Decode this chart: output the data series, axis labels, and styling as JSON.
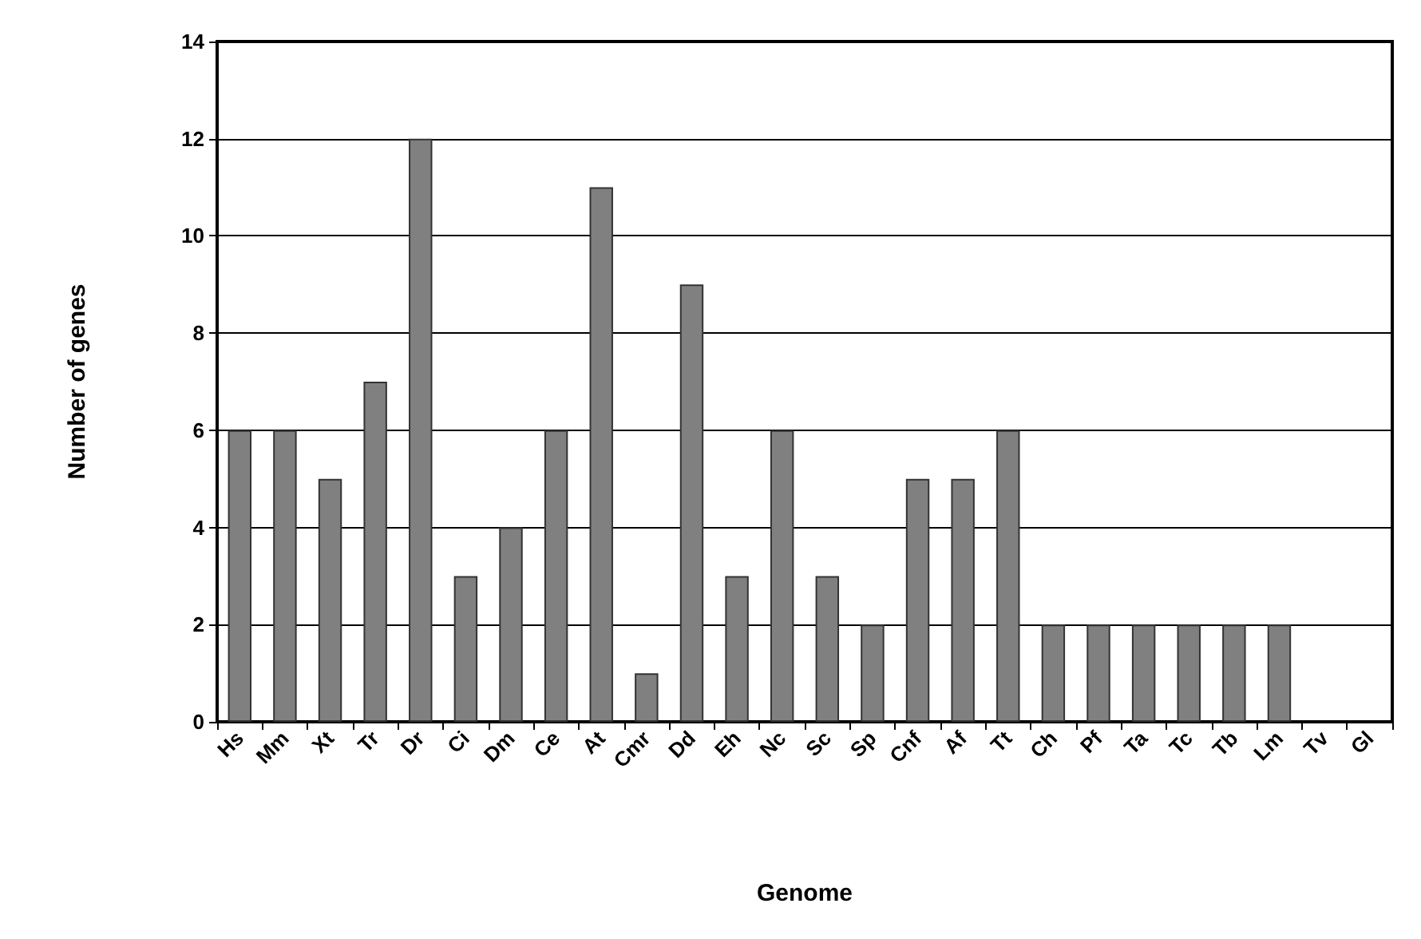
{
  "chart_data": {
    "type": "bar",
    "xlabel": "Genome",
    "ylabel": "Number of genes",
    "categories": [
      "Hs",
      "Mm",
      "Xt",
      "Tr",
      "Dr",
      "Ci",
      "Dm",
      "Ce",
      "At",
      "Cmr",
      "Dd",
      "Eh",
      "Nc",
      "Sc",
      "Sp",
      "Cnf",
      "Af",
      "Tt",
      "Ch",
      "Pf",
      "Ta",
      "Tc",
      "Tb",
      "Lm",
      "Tv",
      "Gl"
    ],
    "values": [
      6,
      6,
      5,
      7,
      12,
      3,
      4,
      6,
      11,
      1,
      9,
      3,
      6,
      3,
      2,
      5,
      5,
      6,
      2,
      2,
      2,
      2,
      2,
      2,
      0,
      0
    ],
    "color": "#808080",
    "ylim": [
      0,
      14
    ],
    "yticks": [
      0,
      2,
      4,
      6,
      8,
      10,
      12,
      14
    ],
    "grid": "y"
  }
}
